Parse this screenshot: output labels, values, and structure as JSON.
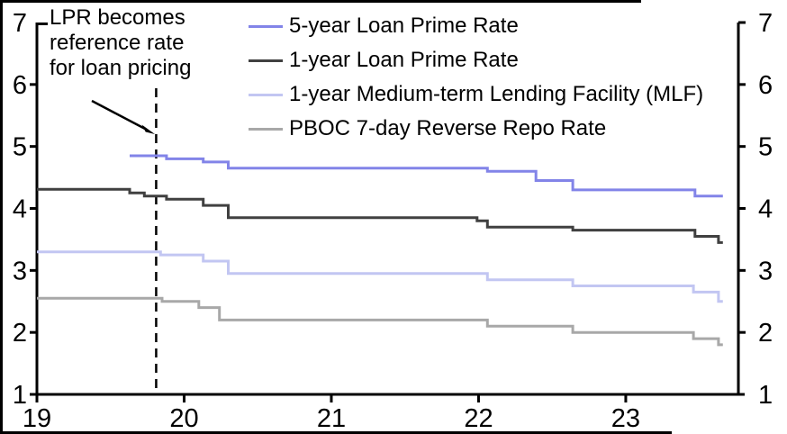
{
  "annotation": {
    "lines": [
      "LPR becomes",
      "reference rate",
      "for loan pricing"
    ]
  },
  "colors": {
    "background": "#ffffff",
    "axis": "#000000",
    "frame": "#000000",
    "event_line": "#000000",
    "arrow": "#000000"
  },
  "chart_data": {
    "type": "line",
    "style": "step",
    "grid": false,
    "legend_position": "top-center-inside",
    "x_axis": {
      "range_start": 19,
      "range_end": 23.765,
      "ticks": [
        19,
        20,
        21,
        22,
        23
      ],
      "tick_labels": [
        "19",
        "20",
        "21",
        "22",
        "23"
      ]
    },
    "y_axis": {
      "range": [
        1,
        7
      ],
      "ticks": [
        1,
        2,
        3,
        4,
        5,
        6,
        7
      ],
      "tick_labels": [
        "1",
        "2",
        "3",
        "4",
        "5",
        "6",
        "7"
      ],
      "mirrored_right": true
    },
    "event_line": {
      "x": 19.81,
      "label": "LPR becomes reference rate for loan pricing"
    },
    "series": [
      {
        "name": "5-year Loan Prime Rate",
        "color": "#8284e8",
        "points": [
          [
            19.63,
            4.85
          ],
          [
            19.88,
            4.8
          ],
          [
            20.13,
            4.75
          ],
          [
            20.3,
            4.65
          ],
          [
            22.06,
            4.6
          ],
          [
            22.39,
            4.45
          ],
          [
            22.64,
            4.3
          ],
          [
            23.47,
            4.2
          ],
          [
            23.66,
            4.2
          ]
        ]
      },
      {
        "name": "1-year Loan Prime Rate",
        "color": "#404040",
        "points": [
          [
            19.0,
            4.31
          ],
          [
            19.63,
            4.25
          ],
          [
            19.73,
            4.2
          ],
          [
            19.88,
            4.15
          ],
          [
            20.13,
            4.05
          ],
          [
            20.3,
            3.85
          ],
          [
            21.99,
            3.8
          ],
          [
            22.06,
            3.7
          ],
          [
            22.64,
            3.65
          ],
          [
            23.47,
            3.55
          ],
          [
            23.63,
            3.45
          ],
          [
            23.66,
            3.45
          ]
        ]
      },
      {
        "name": "1-year Medium-term Lending Facility (MLF)",
        "color": "#c2c6f2",
        "points": [
          [
            19.0,
            3.3
          ],
          [
            19.84,
            3.25
          ],
          [
            20.13,
            3.15
          ],
          [
            20.3,
            2.95
          ],
          [
            22.06,
            2.85
          ],
          [
            22.64,
            2.75
          ],
          [
            23.46,
            2.65
          ],
          [
            23.63,
            2.5
          ],
          [
            23.66,
            2.5
          ]
        ]
      },
      {
        "name": "PBOC 7-day Reverse Repo Rate",
        "color": "#a8a8a8",
        "points": [
          [
            19.0,
            2.55
          ],
          [
            19.85,
            2.5
          ],
          [
            20.1,
            2.4
          ],
          [
            20.24,
            2.2
          ],
          [
            22.06,
            2.1
          ],
          [
            22.64,
            2.0
          ],
          [
            23.46,
            1.9
          ],
          [
            23.63,
            1.8
          ],
          [
            23.66,
            1.8
          ]
        ]
      }
    ]
  }
}
